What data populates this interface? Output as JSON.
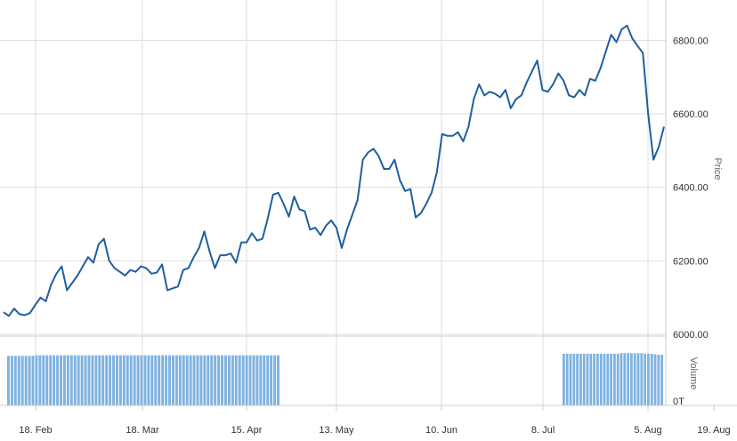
{
  "colors": {
    "line": "#1f5f9f",
    "volume_bar": "#7fb2e0",
    "grid": "#dddddd",
    "axis": "#cccccc",
    "background": "#ffffff"
  },
  "chart_data": [
    {
      "type": "line",
      "title": "",
      "ylabel": "Price",
      "ylim": [
        6000,
        6900
      ],
      "yticks": [
        6000,
        6200,
        6400,
        6600,
        6800
      ],
      "ytick_labels": [
        "6000.00",
        "6200.00",
        "6400.00",
        "6600.00",
        "6800.00"
      ],
      "grid": true,
      "series": [
        {
          "values": [
            6060,
            6050,
            6070,
            6055,
            6052,
            6058,
            6080,
            6100,
            6090,
            6135,
            6165,
            6185,
            6120,
            6140,
            6160,
            6185,
            6210,
            6195,
            6245,
            6260,
            6200,
            6180,
            6170,
            6160,
            6175,
            6170,
            6185,
            6180,
            6165,
            6168,
            6190,
            6120,
            6125,
            6130,
            6175,
            6180,
            6210,
            6235,
            6280,
            6225,
            6180,
            6215,
            6215,
            6220,
            6195,
            6250,
            6250,
            6275,
            6255,
            6260,
            6315,
            6380,
            6385,
            6355,
            6320,
            6375,
            6340,
            6335,
            6285,
            6290,
            6270,
            6295,
            6310,
            6290,
            6235,
            6285,
            6325,
            6365,
            6475,
            6495,
            6505,
            6485,
            6450,
            6450,
            6475,
            6420,
            6390,
            6395,
            6318,
            6330,
            6355,
            6385,
            6440,
            6545,
            6540,
            6540,
            6550,
            6525,
            6565,
            6640,
            6680,
            6650,
            6660,
            6655,
            6645,
            6665,
            6615,
            6640,
            6650,
            6685,
            6715,
            6745,
            6665,
            6660,
            6680,
            6710,
            6690,
            6650,
            6645,
            6665,
            6650,
            6695,
            6690,
            6725,
            6770,
            6815,
            6795,
            6830,
            6840,
            6805,
            6785,
            6765,
            6600,
            6475,
            6510,
            6565
          ]
        }
      ]
    },
    {
      "type": "bar",
      "title": "",
      "ylabel": "Volume",
      "ylim": [
        0,
        1
      ],
      "ytick_labels": [
        "0T"
      ],
      "segments": [
        {
          "bars": 78,
          "values": [
            0.93,
            0.93,
            0.93,
            0.93,
            0.93,
            0.93,
            0.93,
            0.93,
            0.94,
            0.94,
            0.94,
            0.94,
            0.94,
            0.94,
            0.94,
            0.94,
            0.94,
            0.94,
            0.94,
            0.94,
            0.94,
            0.94,
            0.94,
            0.94,
            0.94,
            0.94,
            0.94,
            0.94,
            0.94,
            0.94,
            0.94,
            0.94,
            0.94,
            0.94,
            0.94,
            0.94,
            0.94,
            0.94,
            0.94,
            0.94,
            0.94,
            0.94,
            0.94,
            0.94,
            0.94,
            0.94,
            0.94,
            0.94,
            0.94,
            0.94,
            0.94,
            0.94,
            0.94,
            0.94,
            0.94,
            0.94,
            0.94,
            0.94,
            0.94,
            0.94,
            0.94,
            0.94,
            0.94,
            0.94,
            0.94,
            0.94,
            0.94,
            0.94,
            0.94,
            0.94,
            0.94,
            0.94,
            0.94,
            0.94,
            0.94,
            0.94,
            0.94,
            0.94
          ]
        },
        {
          "bars": 30,
          "values": [
            0.97,
            0.97,
            0.97,
            0.97,
            0.97,
            0.97,
            0.97,
            0.97,
            0.97,
            0.97,
            0.97,
            0.97,
            0.97,
            0.97,
            0.97,
            0.97,
            0.97,
            0.98,
            0.98,
            0.98,
            0.98,
            0.98,
            0.98,
            0.98,
            0.97,
            0.97,
            0.97,
            0.96,
            0.95,
            0.95
          ]
        }
      ]
    }
  ],
  "xaxis": {
    "tick_labels": [
      "18. Feb",
      "18. Mar",
      "15. Apr",
      "13. May",
      "10. Jun",
      "8. Jul",
      "5. Aug",
      "19. Aug"
    ]
  }
}
